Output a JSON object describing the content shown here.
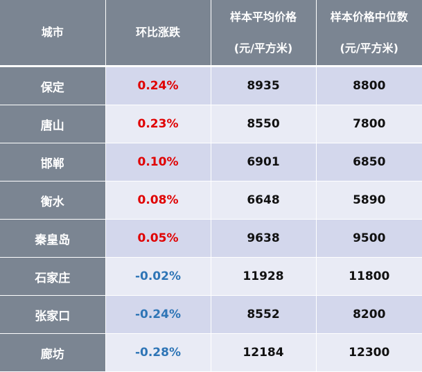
{
  "headers": {
    "city": "城市",
    "change": "环比涨跌",
    "avg_line1": "样本平均价格",
    "avg_line2": "(元/平方米)",
    "median_line1": "样本价格中位数",
    "median_line2": "(元/平方米)"
  },
  "colors": {
    "header_bg": "#7b8592",
    "row_odd_bg": "#d3d7ec",
    "row_even_bg": "#e9ebf5",
    "positive": "#e00000",
    "negative": "#2e75b6"
  },
  "rows": [
    {
      "city": "保定",
      "change": "0.24%",
      "avg": "8935",
      "median": "8800"
    },
    {
      "city": "唐山",
      "change": "0.23%",
      "avg": "8550",
      "median": "7800"
    },
    {
      "city": "邯郸",
      "change": "0.10%",
      "avg": "6901",
      "median": "6850"
    },
    {
      "city": "衡水",
      "change": "0.08%",
      "avg": "6648",
      "median": "5890"
    },
    {
      "city": "秦皇岛",
      "change": "0.05%",
      "avg": "9638",
      "median": "9500"
    },
    {
      "city": "石家庄",
      "change": "-0.02%",
      "avg": "11928",
      "median": "11800"
    },
    {
      "city": "张家口",
      "change": "-0.24%",
      "avg": "8552",
      "median": "8200"
    },
    {
      "city": "廊坊",
      "change": "-0.28%",
      "avg": "12184",
      "median": "12300"
    }
  ]
}
